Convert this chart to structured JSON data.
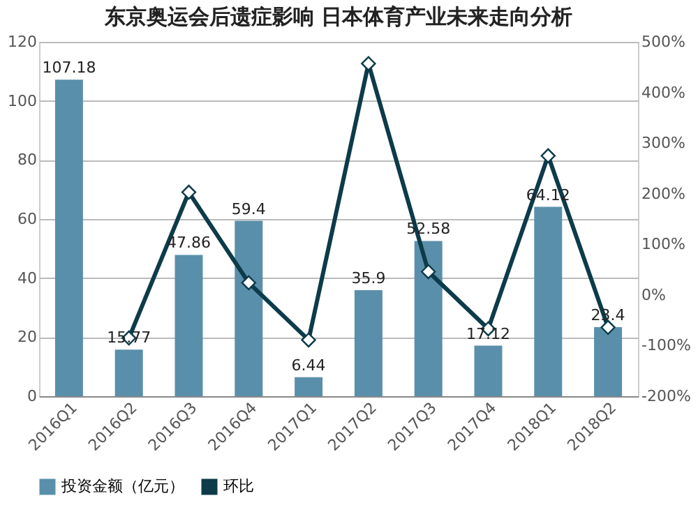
{
  "chart_data": {
    "type": "bar",
    "title": "东京奥运会后遗症影响 日本体育产业未来走向分析",
    "categories": [
      "2016Q1",
      "2016Q2",
      "2016Q3",
      "2016Q4",
      "2017Q1",
      "2017Q2",
      "2017Q3",
      "2017Q4",
      "2018Q1",
      "2018Q2"
    ],
    "series": [
      {
        "name": "投资金额（亿元）",
        "color": "#5a8fab",
        "values": [
          107.18,
          15.77,
          47.86,
          59.4,
          6.44,
          35.9,
          52.58,
          17.12,
          64.12,
          23.4
        ],
        "data_labels": true
      },
      {
        "name": "环比",
        "type": "line",
        "axis": "y2",
        "color": "#0d3b4a",
        "marker": "diamond",
        "values": [
          null,
          -85,
          203,
          24,
          -89,
          457,
          46,
          -67,
          275,
          -64
        ]
      }
    ],
    "ylim": [
      0,
      120
    ],
    "yticks": [
      0,
      20,
      40,
      60,
      80,
      100,
      120
    ],
    "y2lim": [
      -200,
      500
    ],
    "y2ticks": [
      {
        "value": -200,
        "label": "-200%"
      },
      {
        "value": -100,
        "label": "-100%"
      },
      {
        "value": 0,
        "label": "0%"
      },
      {
        "value": 100,
        "label": "100%"
      },
      {
        "value": 200,
        "label": "200%"
      },
      {
        "value": 300,
        "label": "300%"
      },
      {
        "value": 400,
        "label": "400%"
      },
      {
        "value": 500,
        "label": "500%"
      }
    ],
    "grid": "y",
    "legend": "bottom"
  }
}
